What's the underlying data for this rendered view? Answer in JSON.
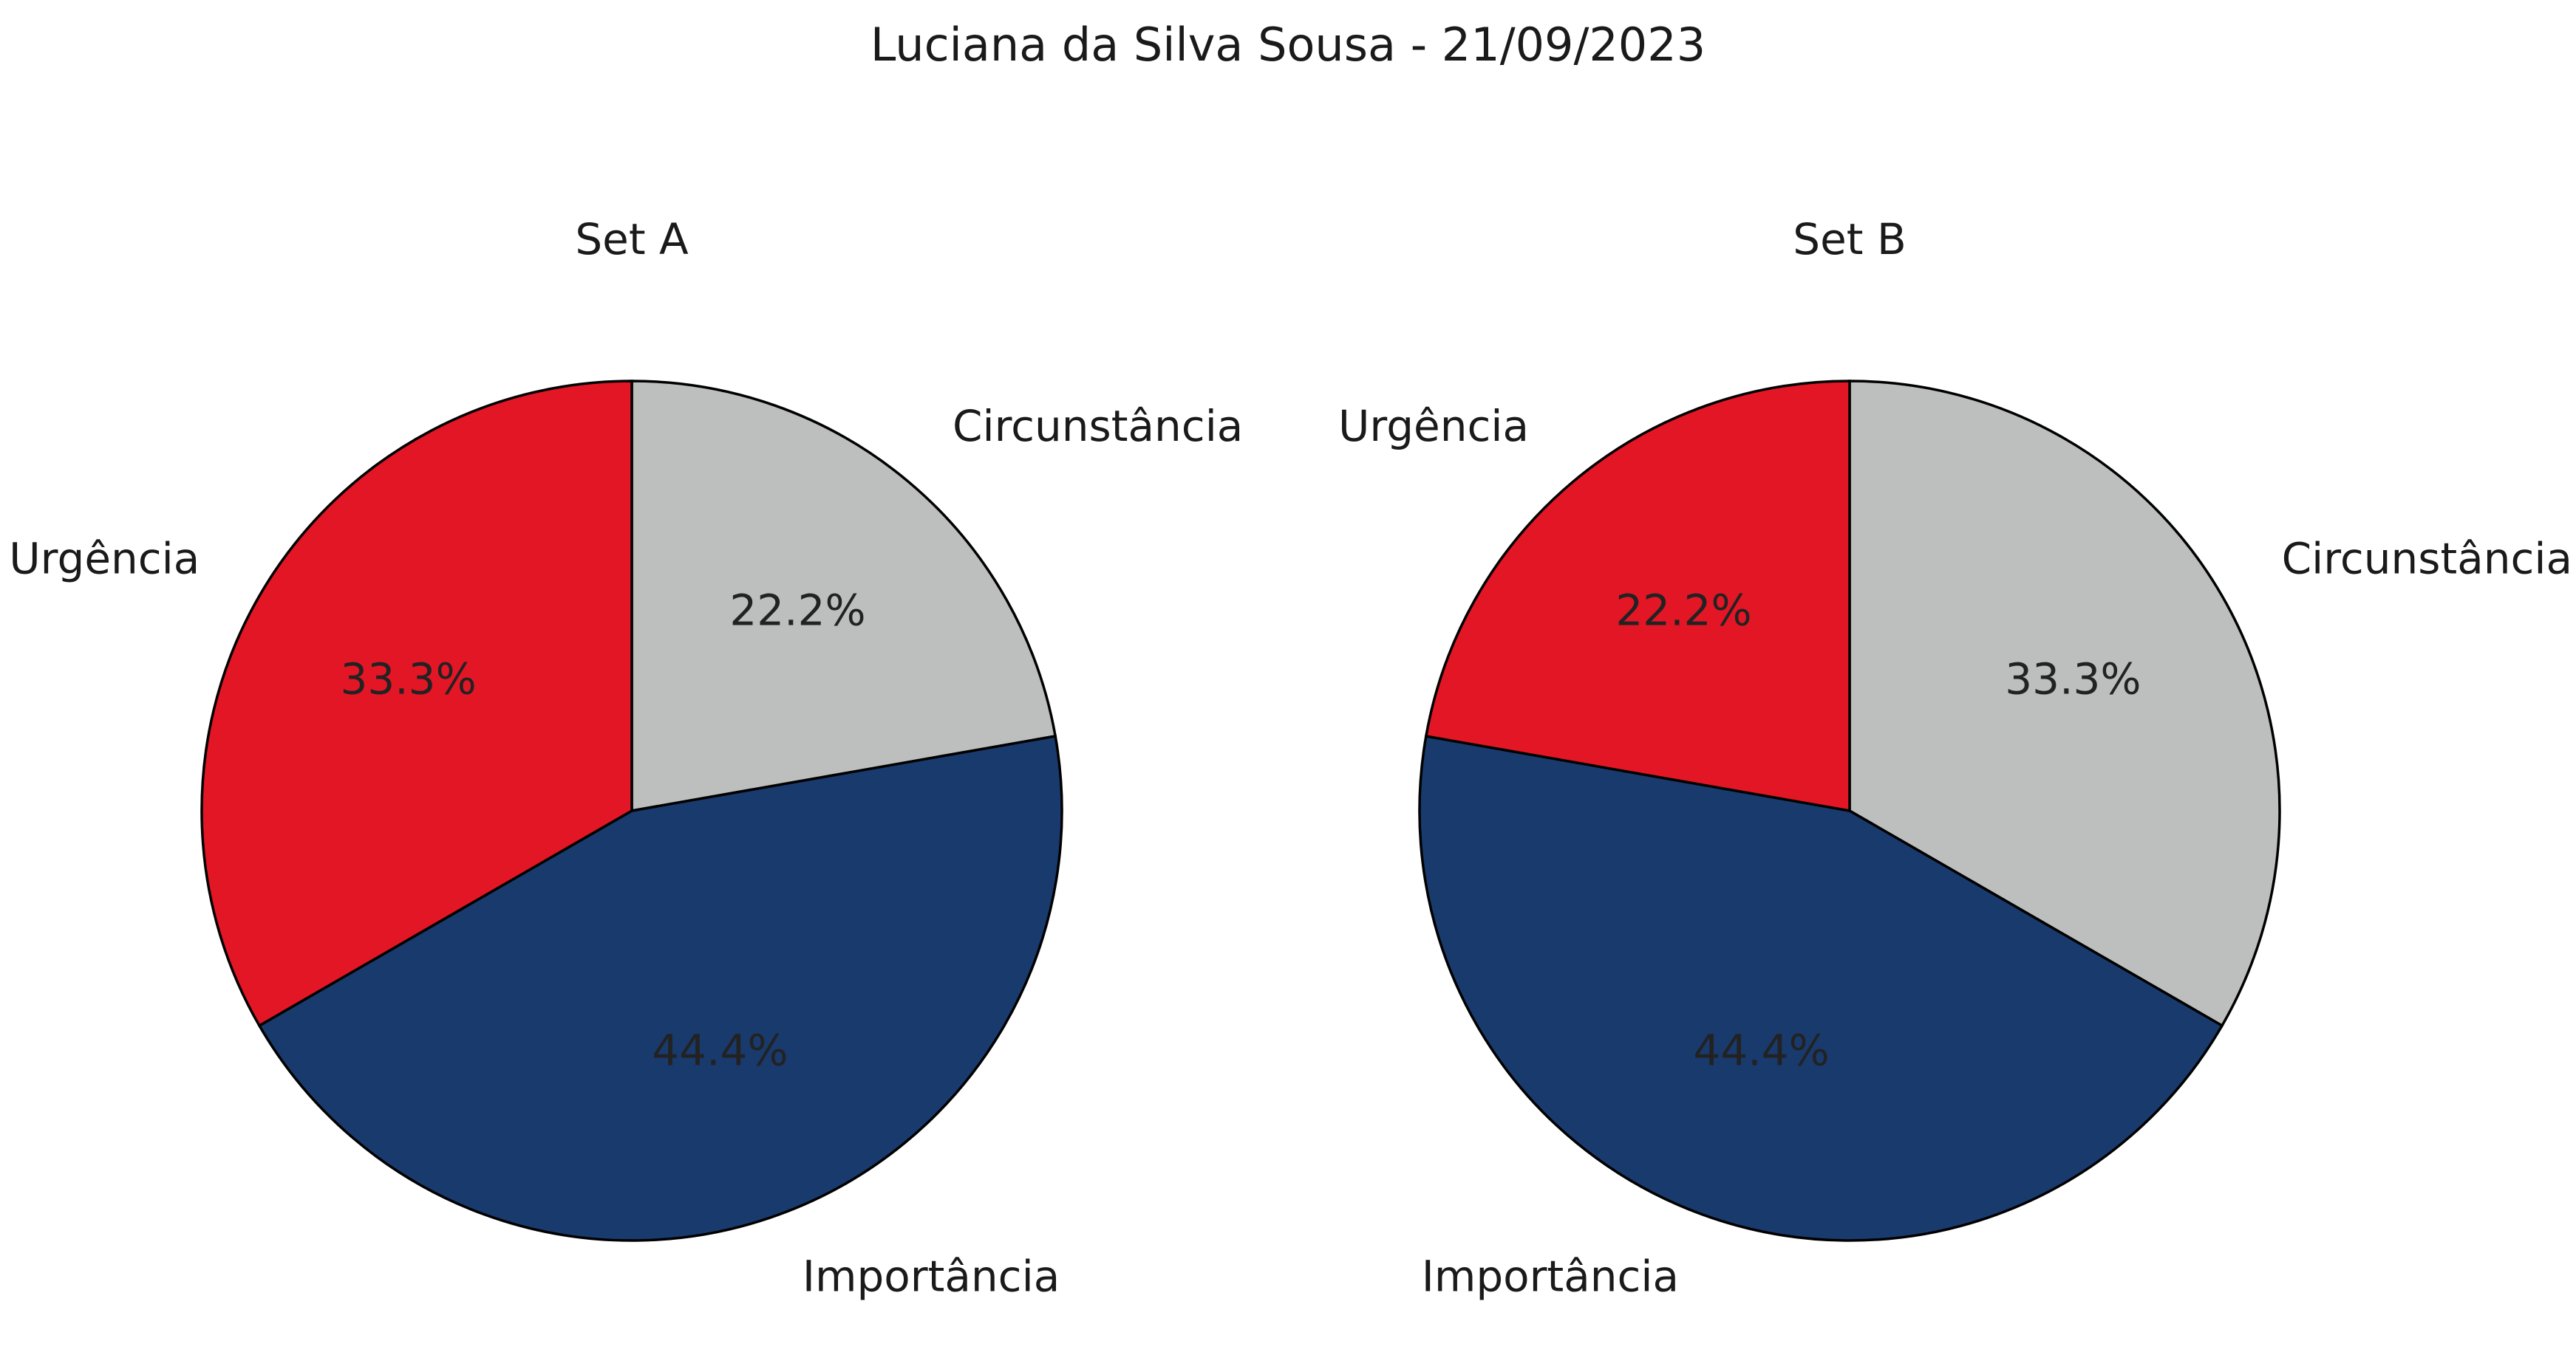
{
  "figure_title": "Luciana da Silva Sousa - 21/09/2023",
  "chart_data": [
    {
      "type": "pie",
      "title": "Set A",
      "start_angle_deg": 90,
      "direction": "clockwise",
      "slices": [
        {
          "label": "Circunstância",
          "value": 22.2,
          "pct_label": "22.2%",
          "color": "#bdbebe"
        },
        {
          "label": "Importância",
          "value": 44.4,
          "pct_label": "44.4%",
          "color": "#193a6d"
        },
        {
          "label": "Urgência",
          "value": 33.3,
          "pct_label": "33.3%",
          "color": "#e31626"
        }
      ]
    },
    {
      "type": "pie",
      "title": "Set B",
      "start_angle_deg": 90,
      "direction": "clockwise",
      "slices": [
        {
          "label": "Circunstância",
          "value": 33.3,
          "pct_label": "33.3%",
          "color": "#bdbebe"
        },
        {
          "label": "Importância",
          "value": 44.4,
          "pct_label": "44.4%",
          "color": "#193a6d"
        },
        {
          "label": "Urgência",
          "value": 22.2,
          "pct_label": "22.2%",
          "color": "#e31626"
        }
      ]
    }
  ]
}
